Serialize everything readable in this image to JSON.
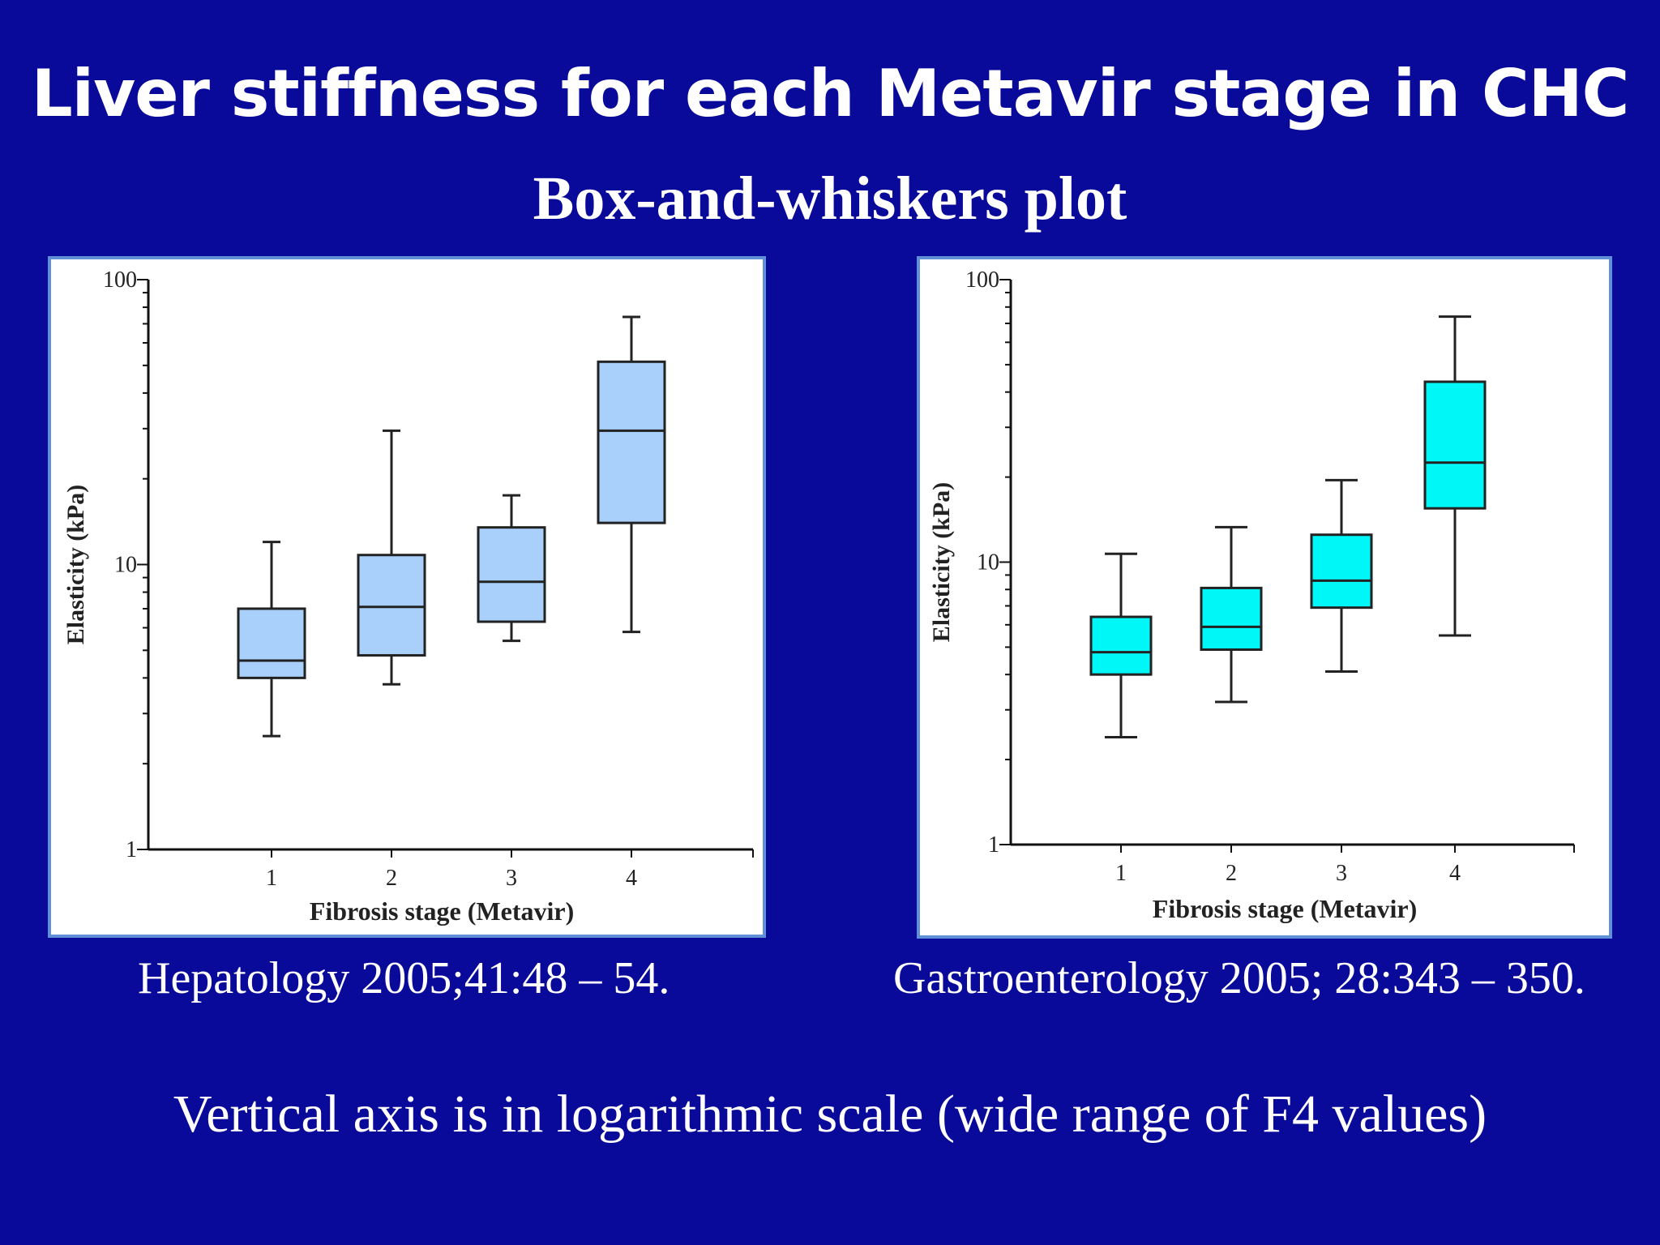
{
  "slide": {
    "title": "Liver stiffness for each Metavir stage  in CHC",
    "subtitle": "Box-and-whiskers plot",
    "footnote": "Vertical axis is in logarithmic scale (wide range of F4 values)"
  },
  "citations": {
    "left": "Hepatology 2005;41:48 – 54.",
    "right": "Gastroenterology 2005; 28:343 – 350."
  },
  "colors": {
    "background": "#0a0a9a",
    "panel_border": "#5f8fd6",
    "left_box_fill": "#a8d0fb",
    "right_box_fill": "#00f7f7"
  },
  "chart_data": [
    {
      "type": "box",
      "xlabel": "Fibrosis stage (Metavir)",
      "ylabel": "Elasticity (kPa)",
      "yscale": "log",
      "ylim": [
        1,
        100
      ],
      "yticks": [
        "1",
        "10",
        "100"
      ],
      "categories": [
        "1",
        "2",
        "3",
        "4"
      ],
      "boxes": [
        {
          "category": "1",
          "whisker_low": 2.5,
          "q1": 4.0,
          "median": 4.6,
          "q3": 7.0,
          "whisker_high": 12.0
        },
        {
          "category": "2",
          "whisker_low": 3.8,
          "q1": 4.8,
          "median": 7.1,
          "q3": 10.8,
          "whisker_high": 29.5
        },
        {
          "category": "3",
          "whisker_low": 5.4,
          "q1": 6.3,
          "median": 8.7,
          "q3": 13.5,
          "whisker_high": 17.5
        },
        {
          "category": "4",
          "whisker_low": 5.8,
          "q1": 14.0,
          "median": 29.5,
          "q3": 51.5,
          "whisker_high": 74.0
        }
      ]
    },
    {
      "type": "box",
      "xlabel": "Fibrosis stage (Metavir)",
      "ylabel": "Elasticity (kPa)",
      "yscale": "log",
      "ylim": [
        1,
        100
      ],
      "yticks": [
        "1",
        "10",
        "100"
      ],
      "categories": [
        "1",
        "2",
        "3",
        "4"
      ],
      "boxes": [
        {
          "category": "1",
          "whisker_low": 2.4,
          "q1": 4.0,
          "median": 4.8,
          "q3": 6.4,
          "whisker_high": 10.7
        },
        {
          "category": "2",
          "whisker_low": 3.2,
          "q1": 4.9,
          "median": 5.9,
          "q3": 8.1,
          "whisker_high": 13.3
        },
        {
          "category": "3",
          "whisker_low": 4.1,
          "q1": 6.9,
          "median": 8.6,
          "q3": 12.5,
          "whisker_high": 19.5
        },
        {
          "category": "4",
          "whisker_low": 5.5,
          "q1": 15.5,
          "median": 22.5,
          "q3": 43.5,
          "whisker_high": 74.0
        }
      ]
    }
  ]
}
